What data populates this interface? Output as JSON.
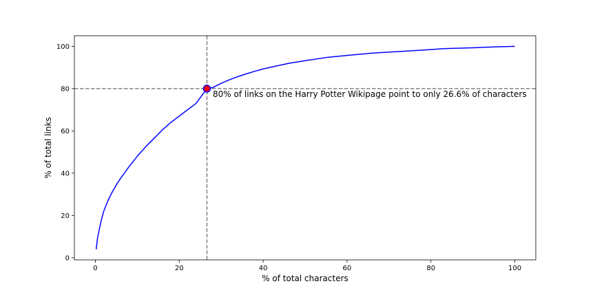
{
  "chart_data": {
    "type": "line",
    "title": "",
    "xlabel": "% of total characters",
    "ylabel": "% of total links",
    "xlim": [
      -5,
      105
    ],
    "ylim": [
      -1,
      105
    ],
    "xticks": [
      0,
      20,
      40,
      60,
      80,
      100
    ],
    "yticks": [
      0,
      20,
      40,
      60,
      80,
      100
    ],
    "grid": false,
    "series": [
      {
        "color": "#0000ff",
        "x": [
          0.2,
          0.5,
          1,
          1.5,
          2,
          3,
          4,
          5,
          6,
          8,
          10,
          12,
          14,
          16,
          18,
          20,
          22,
          24,
          26.6,
          28,
          30,
          32,
          34,
          36,
          38,
          40,
          43,
          46,
          50,
          55,
          60,
          66,
          72,
          78,
          83,
          90,
          95,
          100
        ],
        "y": [
          4,
          9,
          14,
          18.5,
          22,
          27,
          31,
          34.5,
          37.5,
          43,
          48,
          52.5,
          56.5,
          60.5,
          64,
          67,
          70,
          73,
          80,
          80.5,
          82.5,
          84.2,
          85.7,
          87,
          88.2,
          89.3,
          90.6,
          91.9,
          93.2,
          94.7,
          95.7,
          96.8,
          97.5,
          98.2,
          98.9,
          99.3,
          99.7,
          100
        ]
      }
    ],
    "reference_lines": {
      "x": 26.6,
      "y": 80,
      "color": "#808080",
      "style": "dashed"
    },
    "highlight_point": {
      "x": 26.6,
      "y": 80,
      "fill": "#ff0000",
      "edge": "#0000ff"
    },
    "annotation": {
      "text": "80% of links on the Harry Potter Wikipage point to only 26.6% of characters",
      "x": 28,
      "y": 76
    }
  }
}
